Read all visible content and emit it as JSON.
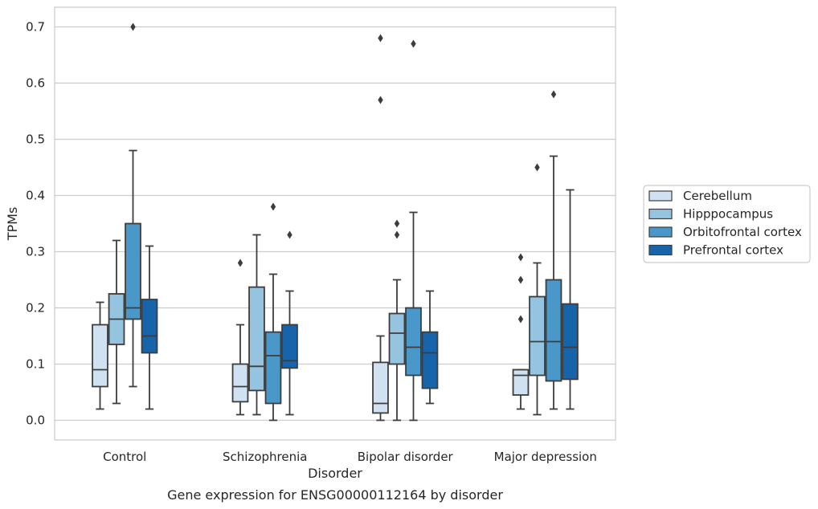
{
  "chart_data": {
    "type": "boxplot",
    "xlabel": "Disorder",
    "ylabel": "TPMs",
    "caption": "Gene expression for ENSG00000112164 by disorder",
    "ylim": [
      -0.035,
      0.735
    ],
    "yticks": [
      0.0,
      0.1,
      0.2,
      0.3,
      0.4,
      0.5,
      0.6,
      0.7
    ],
    "ytick_labels": [
      "0.0",
      "0.1",
      "0.2",
      "0.3",
      "0.4",
      "0.5",
      "0.6",
      "0.7"
    ],
    "grid": "horizontal",
    "legend_position": "right",
    "categories": [
      "Control",
      "Schizophrenia",
      "Bipolar disorder",
      "Major depression"
    ],
    "series": [
      {
        "name": "Cerebellum",
        "color": "#d0e1f2",
        "boxes": [
          {
            "whislo": 0.02,
            "q1": 0.06,
            "med": 0.09,
            "q3": 0.17,
            "whishi": 0.21,
            "fliers": []
          },
          {
            "whislo": 0.01,
            "q1": 0.033,
            "med": 0.06,
            "q3": 0.1,
            "whishi": 0.17,
            "fliers": [
              0.28
            ]
          },
          {
            "whislo": 0.0,
            "q1": 0.013,
            "med": 0.03,
            "q3": 0.103,
            "whishi": 0.15,
            "fliers": [
              0.57,
              0.68
            ]
          },
          {
            "whislo": 0.02,
            "q1": 0.045,
            "med": 0.08,
            "q3": 0.09,
            "whishi": 0.09,
            "fliers": [
              0.18,
              0.25,
              0.29
            ]
          }
        ]
      },
      {
        "name": "Hipppocampus",
        "color": "#94c4df",
        "boxes": [
          {
            "whislo": 0.03,
            "q1": 0.135,
            "med": 0.18,
            "q3": 0.225,
            "whishi": 0.32,
            "fliers": []
          },
          {
            "whislo": 0.01,
            "q1": 0.053,
            "med": 0.096,
            "q3": 0.237,
            "whishi": 0.33,
            "fliers": []
          },
          {
            "whislo": 0.0,
            "q1": 0.1,
            "med": 0.155,
            "q3": 0.19,
            "whishi": 0.25,
            "fliers": [
              0.33,
              0.35
            ]
          },
          {
            "whislo": 0.01,
            "q1": 0.08,
            "med": 0.14,
            "q3": 0.22,
            "whishi": 0.28,
            "fliers": [
              0.45
            ]
          }
        ]
      },
      {
        "name": "Orbitofrontal cortex",
        "color": "#4a98c9",
        "boxes": [
          {
            "whislo": 0.06,
            "q1": 0.18,
            "med": 0.2,
            "q3": 0.35,
            "whishi": 0.48,
            "fliers": [
              0.7
            ]
          },
          {
            "whislo": 0.0,
            "q1": 0.03,
            "med": 0.115,
            "q3": 0.157,
            "whishi": 0.26,
            "fliers": [
              0.38
            ]
          },
          {
            "whislo": 0.0,
            "q1": 0.08,
            "med": 0.13,
            "q3": 0.2,
            "whishi": 0.37,
            "fliers": [
              0.67
            ]
          },
          {
            "whislo": 0.02,
            "q1": 0.07,
            "med": 0.14,
            "q3": 0.25,
            "whishi": 0.47,
            "fliers": [
              0.58
            ]
          }
        ]
      },
      {
        "name": "Prefrontal cortex",
        "color": "#1764ab",
        "boxes": [
          {
            "whislo": 0.02,
            "q1": 0.12,
            "med": 0.15,
            "q3": 0.215,
            "whishi": 0.31,
            "fliers": []
          },
          {
            "whislo": 0.01,
            "q1": 0.093,
            "med": 0.106,
            "q3": 0.17,
            "whishi": 0.23,
            "fliers": [
              0.33
            ]
          },
          {
            "whislo": 0.03,
            "q1": 0.057,
            "med": 0.12,
            "q3": 0.157,
            "whishi": 0.23,
            "fliers": []
          },
          {
            "whislo": 0.02,
            "q1": 0.073,
            "med": 0.13,
            "q3": 0.207,
            "whishi": 0.41,
            "fliers": []
          }
        ]
      }
    ]
  }
}
